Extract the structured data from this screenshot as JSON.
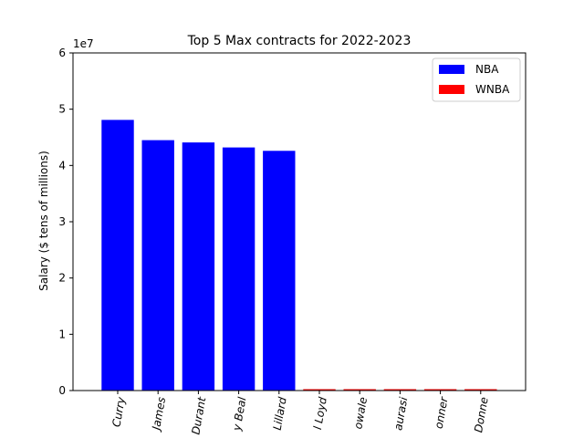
{
  "chart_data": {
    "type": "bar",
    "title": "Top 5 Max contracts for 2022-2023",
    "ylabel": "Salary ($ tens of millions)",
    "xlabel": "",
    "offset_label": "1e7",
    "ylim": [
      0,
      6
    ],
    "yticks": [
      0,
      1,
      2,
      3,
      4,
      5,
      6
    ],
    "grid": false,
    "legend_position": "top-right",
    "categories": [
      "Curry",
      "James",
      "Durant",
      "y Beal",
      "Lillard",
      "l Loyd",
      "owale",
      "aurasi",
      "onner",
      "Donne"
    ],
    "series": [
      {
        "name": "NBA",
        "color": "#0000ff",
        "values": [
          4.81,
          4.45,
          4.41,
          4.32,
          4.26,
          null,
          null,
          null,
          null,
          null
        ]
      },
      {
        "name": "WNBA",
        "color": "#ff0000",
        "values": [
          null,
          null,
          null,
          null,
          null,
          0.0234,
          0.0234,
          0.0234,
          0.0234,
          0.0234
        ]
      }
    ]
  }
}
